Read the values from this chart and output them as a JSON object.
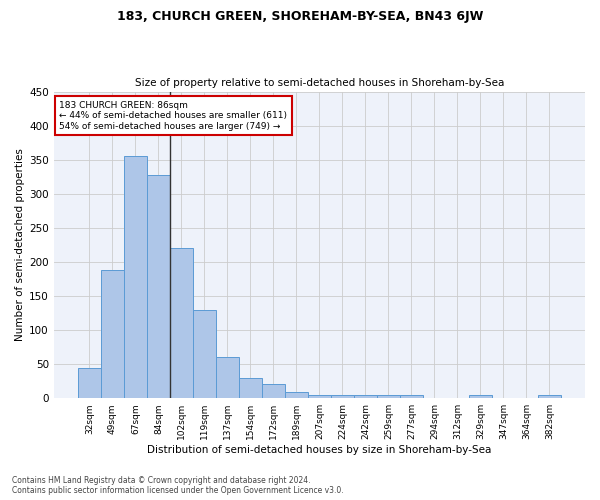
{
  "title": "183, CHURCH GREEN, SHOREHAM-BY-SEA, BN43 6JW",
  "subtitle": "Size of property relative to semi-detached houses in Shoreham-by-Sea",
  "xlabel": "Distribution of semi-detached houses by size in Shoreham-by-Sea",
  "ylabel": "Number of semi-detached properties",
  "categories": [
    "32sqm",
    "49sqm",
    "67sqm",
    "84sqm",
    "102sqm",
    "119sqm",
    "137sqm",
    "154sqm",
    "172sqm",
    "189sqm",
    "207sqm",
    "224sqm",
    "242sqm",
    "259sqm",
    "277sqm",
    "294sqm",
    "312sqm",
    "329sqm",
    "347sqm",
    "364sqm",
    "382sqm"
  ],
  "values": [
    45,
    188,
    355,
    327,
    220,
    130,
    60,
    30,
    21,
    9,
    4,
    5,
    4,
    4,
    4,
    0,
    0,
    4,
    0,
    0,
    4
  ],
  "bar_color": "#aec6e8",
  "bar_edge_color": "#5b9bd5",
  "property_label": "183 CHURCH GREEN: 86sqm",
  "smaller_text": "← 44% of semi-detached houses are smaller (611)",
  "larger_text": "54% of semi-detached houses are larger (749) →",
  "vline_x": 3.5,
  "vline_color": "#333333",
  "annotation_box_color": "#cc0000",
  "bg_color": "#eef2fa",
  "grid_color": "#cccccc",
  "footer1": "Contains HM Land Registry data © Crown copyright and database right 2024.",
  "footer2": "Contains public sector information licensed under the Open Government Licence v3.0.",
  "ylim": [
    0,
    450
  ],
  "yticks": [
    0,
    50,
    100,
    150,
    200,
    250,
    300,
    350,
    400,
    450
  ]
}
